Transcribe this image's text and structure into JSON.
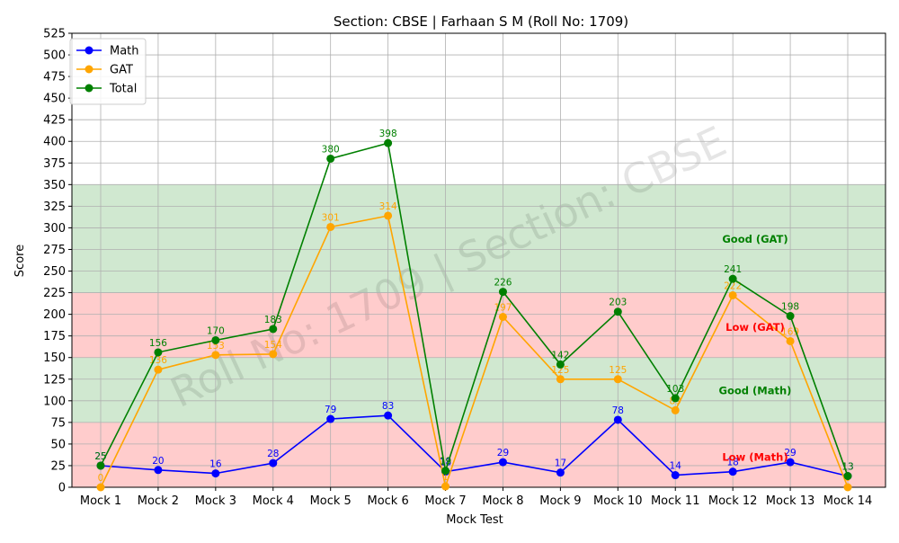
{
  "chart_data": {
    "type": "line",
    "title": "Section: CBSE | Farhaan S M (Roll No: 1709)",
    "xlabel": "Mock Test",
    "ylabel": "Score",
    "watermark": "Roll No: 1709 | Section: CBSE",
    "ylim": [
      0,
      525
    ],
    "yticks": [
      0,
      25,
      50,
      75,
      100,
      125,
      150,
      175,
      200,
      225,
      250,
      275,
      300,
      325,
      350,
      375,
      400,
      425,
      450,
      475,
      500,
      525
    ],
    "categories": [
      "Mock 1",
      "Mock 2",
      "Mock 3",
      "Mock 4",
      "Mock 5",
      "Mock 6",
      "Mock 7",
      "Mock 8",
      "Mock 9",
      "Mock 10",
      "Mock 11",
      "Mock 12",
      "Mock 13",
      "Mock 14"
    ],
    "grid": true,
    "legend_position": "top-left",
    "series": [
      {
        "name": "Math",
        "color": "#0000ff",
        "values": [
          25,
          20,
          16,
          28,
          79,
          83,
          18,
          29,
          17,
          78,
          14,
          18,
          29,
          13
        ]
      },
      {
        "name": "GAT",
        "color": "#ffa500",
        "values": [
          0,
          136,
          153,
          154,
          301,
          314,
          1,
          197,
          125,
          125,
          89,
          222,
          169,
          0
        ]
      },
      {
        "name": "Total",
        "color": "#008000",
        "values": [
          25,
          156,
          170,
          183,
          380,
          398,
          19,
          226,
          142,
          203,
          103,
          241,
          198,
          13
        ]
      }
    ],
    "bands": [
      {
        "range": [
          0,
          75
        ],
        "color": "#ffcccc",
        "label": "Low (Math)",
        "label_color": "#ff0000",
        "label_y": 35
      },
      {
        "range": [
          75,
          150
        ],
        "color": "#d0e8d0",
        "label": "Good (Math)",
        "label_color": "#008000",
        "label_y": 112
      },
      {
        "range": [
          150,
          225
        ],
        "color": "#ffcccc",
        "label": "Low (GAT)",
        "label_color": "#ff0000",
        "label_y": 185
      },
      {
        "range": [
          225,
          350
        ],
        "color": "#d0e8d0",
        "label": "Good (GAT)",
        "label_color": "#008000",
        "label_y": 287
      }
    ]
  }
}
